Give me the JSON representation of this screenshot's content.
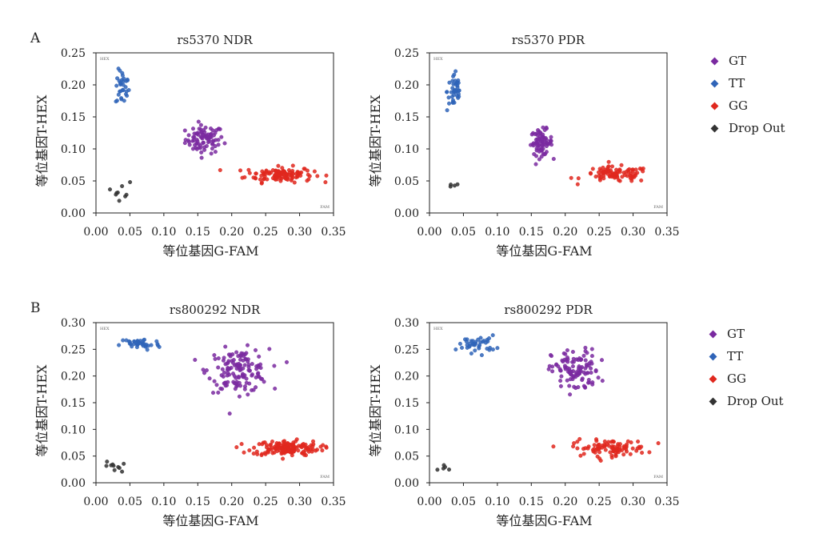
{
  "panels": [
    {
      "letter": "A"
    },
    {
      "letter": "B"
    }
  ],
  "legend": [
    {
      "label": "GT",
      "color": "#7a2aa0"
    },
    {
      "label": "TT",
      "color": "#2f64b8"
    },
    {
      "label": "GG",
      "color": "#e0281e"
    },
    {
      "label": "Drop Out",
      "color": "#333333"
    }
  ],
  "corner_labels": {
    "hex": "HEX",
    "fam": "FAM"
  },
  "chart_data": [
    {
      "type": "scatter",
      "title": "rs5370 NDR",
      "xlabel": "等位基因G-FAM",
      "ylabel": "等位基因T-HEX",
      "xlim": [
        0,
        0.35
      ],
      "ylim": [
        0,
        0.25
      ],
      "xticks": [
        "0.00",
        "0.05",
        "0.10",
        "0.15",
        "0.20",
        "0.25",
        "0.30",
        "0.35"
      ],
      "yticks": [
        "0.00",
        "0.05",
        "0.10",
        "0.15",
        "0.20",
        "0.25"
      ],
      "series": [
        {
          "name": "GT",
          "center": [
            0.16,
            0.115
          ],
          "spread": [
            0.028,
            0.022
          ],
          "count": 85
        },
        {
          "name": "TT",
          "center": [
            0.039,
            0.195
          ],
          "spread": [
            0.01,
            0.028
          ],
          "count": 32
        },
        {
          "name": "GG",
          "center": [
            0.27,
            0.06
          ],
          "spread": [
            0.05,
            0.012
          ],
          "count": 120
        },
        {
          "name": "Drop Out",
          "center": [
            0.038,
            0.035
          ],
          "spread": [
            0.012,
            0.015
          ],
          "count": 9
        }
      ]
    },
    {
      "type": "scatter",
      "title": "rs5370 PDR",
      "xlabel": "等位基因G-FAM",
      "ylabel": "等位基因T-HEX",
      "xlim": [
        0,
        0.35
      ],
      "ylim": [
        0,
        0.25
      ],
      "xticks": [
        "0.00",
        "0.05",
        "0.10",
        "0.15",
        "0.20",
        "0.25",
        "0.30",
        "0.35"
      ],
      "yticks": [
        "0.00",
        "0.05",
        "0.10",
        "0.15",
        "0.20",
        "0.25"
      ],
      "series": [
        {
          "name": "GT",
          "center": [
            0.165,
            0.11
          ],
          "spread": [
            0.016,
            0.02
          ],
          "count": 75
        },
        {
          "name": "TT",
          "center": [
            0.037,
            0.19
          ],
          "spread": [
            0.011,
            0.032
          ],
          "count": 40
        },
        {
          "name": "GG",
          "center": [
            0.275,
            0.06
          ],
          "spread": [
            0.05,
            0.012
          ],
          "count": 90
        },
        {
          "name": "Drop Out",
          "center": [
            0.034,
            0.042
          ],
          "spread": [
            0.006,
            0.008
          ],
          "count": 4
        }
      ]
    },
    {
      "type": "scatter",
      "title": "rs800292 NDR",
      "xlabel": "等位基因G-FAM",
      "ylabel": "等位基因T-HEX",
      "xlim": [
        0,
        0.35
      ],
      "ylim": [
        0,
        0.3
      ],
      "xticks": [
        "0.00",
        "0.05",
        "0.10",
        "0.15",
        "0.20",
        "0.25",
        "0.30",
        "0.35"
      ],
      "yticks": [
        "0.00",
        "0.05",
        "0.10",
        "0.15",
        "0.20",
        "0.25",
        "0.30"
      ],
      "series": [
        {
          "name": "GT",
          "center": [
            0.21,
            0.21
          ],
          "spread": [
            0.045,
            0.04
          ],
          "count": 140
        },
        {
          "name": "TT",
          "center": [
            0.065,
            0.26
          ],
          "spread": [
            0.03,
            0.012
          ],
          "count": 38
        },
        {
          "name": "GG",
          "center": [
            0.28,
            0.065
          ],
          "spread": [
            0.05,
            0.014
          ],
          "count": 150
        },
        {
          "name": "Drop Out",
          "center": [
            0.028,
            0.03
          ],
          "spread": [
            0.014,
            0.01
          ],
          "count": 10
        }
      ]
    },
    {
      "type": "scatter",
      "title": "rs800292 PDR",
      "xlabel": "等位基因G-FAM",
      "ylabel": "等位基因T-HEX",
      "xlim": [
        0,
        0.35
      ],
      "ylim": [
        0,
        0.3
      ],
      "xticks": [
        "0.00",
        "0.05",
        "0.10",
        "0.15",
        "0.20",
        "0.25",
        "0.30",
        "0.35"
      ],
      "yticks": [
        "0.00",
        "0.05",
        "0.10",
        "0.15",
        "0.20",
        "0.25",
        "0.30"
      ],
      "series": [
        {
          "name": "GT",
          "center": [
            0.215,
            0.21
          ],
          "spread": [
            0.035,
            0.04
          ],
          "count": 110
        },
        {
          "name": "TT",
          "center": [
            0.07,
            0.26
          ],
          "spread": [
            0.028,
            0.016
          ],
          "count": 40
        },
        {
          "name": "GG",
          "center": [
            0.265,
            0.065
          ],
          "spread": [
            0.055,
            0.015
          ],
          "count": 95
        },
        {
          "name": "Drop Out",
          "center": [
            0.025,
            0.027
          ],
          "spread": [
            0.012,
            0.01
          ],
          "count": 5
        }
      ]
    }
  ]
}
